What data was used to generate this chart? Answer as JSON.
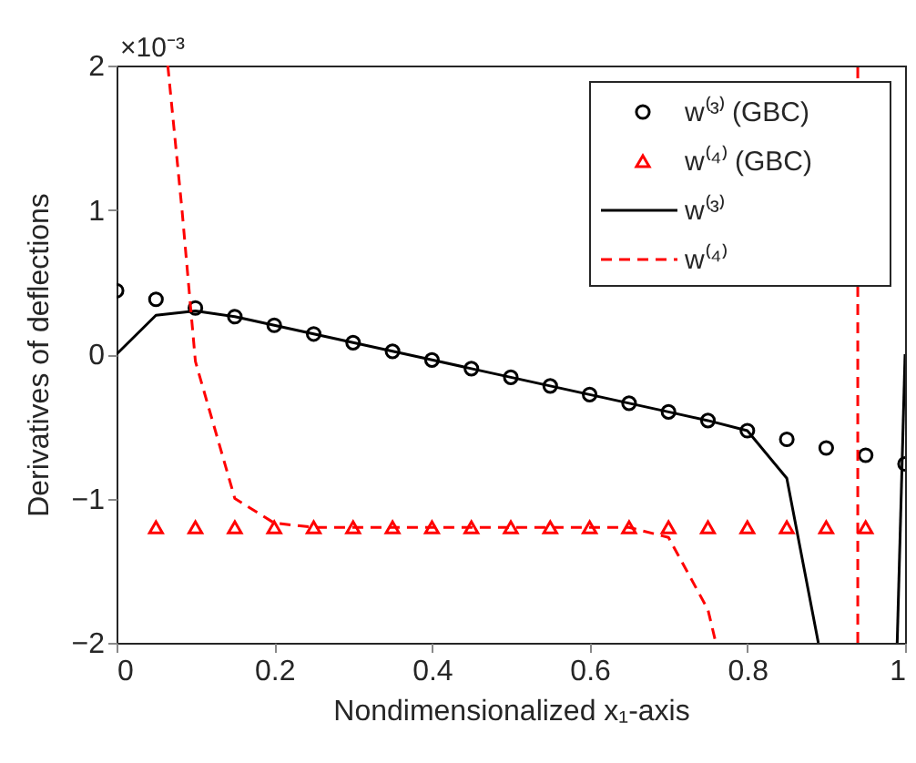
{
  "chart_data": {
    "type": "line",
    "xlabel": "Nondimensionalized x₁-axis",
    "ylabel": "Derivatives of deflections",
    "annotations": [
      "×10⁻³"
    ],
    "xlim": [
      0,
      1
    ],
    "xticks": [
      0,
      0.2,
      0.4,
      0.6,
      0.8,
      1
    ],
    "ylim": [
      -2,
      2
    ],
    "yticks": [
      -2,
      -1,
      0,
      1,
      2
    ],
    "grid": false,
    "legend": "top right",
    "series": [
      {
        "name": "w⁽³⁾ (GBC)",
        "type": "scatter",
        "marker": "circle",
        "color": "#000000",
        "x": [
          0,
          0.05,
          0.1,
          0.15,
          0.2,
          0.25,
          0.3,
          0.35,
          0.4,
          0.45,
          0.5,
          0.55,
          0.6,
          0.65,
          0.7,
          0.75,
          0.8,
          0.85,
          0.9,
          0.95,
          1
        ],
        "values": [
          0.44,
          0.38,
          0.32,
          0.26,
          0.2,
          0.14,
          0.08,
          0.02,
          -0.04,
          -0.1,
          -0.16,
          -0.22,
          -0.28,
          -0.34,
          -0.4,
          -0.46,
          -0.53,
          -0.59,
          -0.65,
          -0.7,
          -0.76
        ]
      },
      {
        "name": "w⁽⁴⁾ (GBC)",
        "type": "scatter",
        "marker": "triangle",
        "color": "#ff0000",
        "x": [
          0.05,
          0.1,
          0.15,
          0.2,
          0.25,
          0.3,
          0.35,
          0.4,
          0.45,
          0.5,
          0.55,
          0.6,
          0.65,
          0.7,
          0.75,
          0.8,
          0.85,
          0.9,
          0.95
        ],
        "values": [
          -1.2,
          -1.2,
          -1.2,
          -1.2,
          -1.2,
          -1.2,
          -1.2,
          -1.2,
          -1.2,
          -1.2,
          -1.2,
          -1.2,
          -1.2,
          -1.2,
          -1.2,
          -1.2,
          -1.2,
          -1.2,
          -1.2
        ]
      },
      {
        "name": "w⁽³⁾",
        "line_style": "solid",
        "color": "#000000",
        "x": [
          0,
          0.05,
          0.1,
          0.15,
          0.2,
          0.25,
          0.3,
          0.35,
          0.4,
          0.45,
          0.5,
          0.55,
          0.6,
          0.65,
          0.7,
          0.75,
          0.8,
          0.85,
          0.89,
          0.95,
          0.99,
          1
        ],
        "values": [
          0,
          0.27,
          0.3,
          0.26,
          0.2,
          0.14,
          0.08,
          0.02,
          -0.04,
          -0.1,
          -0.16,
          -0.22,
          -0.28,
          -0.34,
          -0.4,
          -0.46,
          -0.53,
          -0.86,
          -2,
          null,
          -2,
          0
        ]
      },
      {
        "name": "w⁽⁴⁾",
        "line_style": "dashed",
        "color": "#ff0000",
        "x": [
          0.065,
          0.083,
          0.1,
          0.15,
          0.2,
          0.25,
          0.3,
          0.35,
          0.4,
          0.45,
          0.5,
          0.55,
          0.6,
          0.65,
          0.7,
          0.75,
          0.76,
          0.85,
          0.94,
          0.94
        ],
        "values": [
          2,
          1,
          -0.05,
          -1.0,
          -1.17,
          -1.2,
          -1.2,
          -1.2,
          -1.2,
          -1.2,
          -1.2,
          -1.2,
          -1.2,
          -1.2,
          -1.27,
          -1.77,
          -2,
          null,
          -2,
          2
        ]
      }
    ]
  }
}
